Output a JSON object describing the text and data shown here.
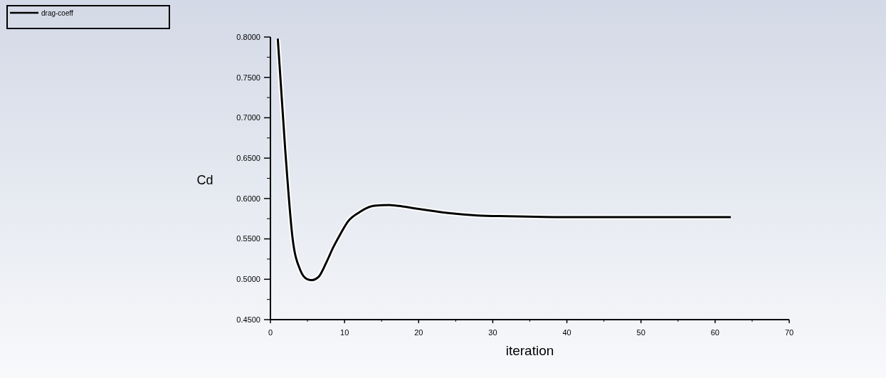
{
  "chart_data": {
    "type": "line",
    "xlabel": "iteration",
    "ylabel": "Cd",
    "legend": "top left",
    "grid": false,
    "marker": "none",
    "line_style": "solid",
    "xlim": [
      0,
      70
    ],
    "ylim": [
      0.45,
      0.8
    ],
    "xticks": [
      0,
      10,
      20,
      30,
      40,
      50,
      60,
      70
    ],
    "yticks": [
      {
        "value": 0.45,
        "label": "0.4500"
      },
      {
        "value": 0.5,
        "label": "0.5000"
      },
      {
        "value": 0.55,
        "label": "0.5500"
      },
      {
        "value": 0.6,
        "label": "0.6000"
      },
      {
        "value": 0.65,
        "label": "0.6500"
      },
      {
        "value": 0.7,
        "label": "0.7000"
      },
      {
        "value": 0.75,
        "label": "0.7500"
      },
      {
        "value": 0.8,
        "label": "0.8000"
      }
    ],
    "series": [
      {
        "name": "drag-coeff",
        "color": "#000000",
        "x": [
          1,
          2,
          3,
          4,
          5,
          5.6,
          6.5,
          7.5,
          8.5,
          9.5,
          10.5,
          12,
          14,
          16,
          18,
          20,
          24,
          28,
          32,
          40,
          50,
          62
        ],
        "values": [
          0.797,
          0.66,
          0.55,
          0.512,
          0.5,
          0.499,
          0.503,
          0.52,
          0.54,
          0.557,
          0.572,
          0.583,
          0.591,
          0.592,
          0.59,
          0.587,
          0.582,
          0.579,
          0.578,
          0.577,
          0.577,
          0.577
        ]
      }
    ]
  }
}
